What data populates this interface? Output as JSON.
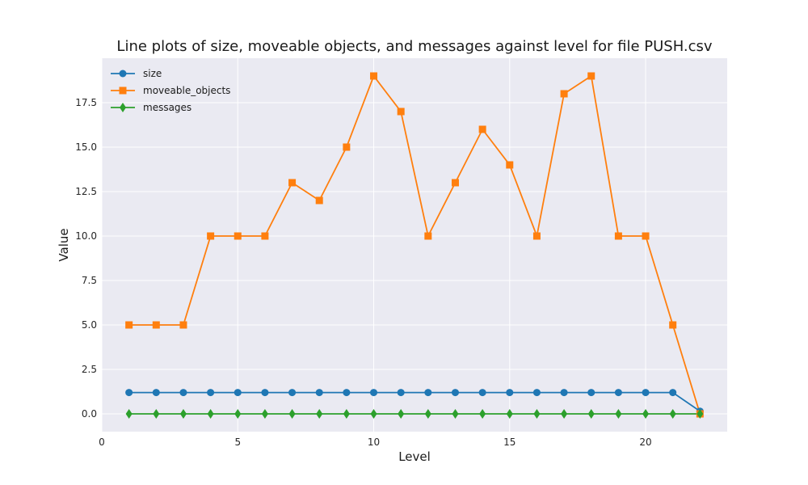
{
  "chart_data": {
    "type": "line",
    "title": "Line plots of size, moveable objects, and messages against level for file PUSH.csv",
    "xlabel": "Level",
    "ylabel": "Value",
    "xlim": [
      0,
      23
    ],
    "ylim": [
      -1,
      20
    ],
    "xticks": [
      0,
      5,
      10,
      15,
      20
    ],
    "yticks": [
      0.0,
      2.5,
      5.0,
      7.5,
      10.0,
      12.5,
      15.0,
      17.5
    ],
    "ytick_labels": [
      "0.0",
      "2.5",
      "5.0",
      "7.5",
      "10.0",
      "12.5",
      "15.0",
      "17.5"
    ],
    "grid": true,
    "legend_position": "top-left",
    "x": [
      1,
      2,
      3,
      4,
      5,
      6,
      7,
      8,
      9,
      10,
      11,
      12,
      13,
      14,
      15,
      16,
      17,
      18,
      19,
      20,
      21,
      22
    ],
    "series": [
      {
        "name": "size",
        "color": "#1f77b4",
        "marker": "circle",
        "values": [
          1.2,
          1.2,
          1.2,
          1.2,
          1.2,
          1.2,
          1.2,
          1.2,
          1.2,
          1.2,
          1.2,
          1.2,
          1.2,
          1.2,
          1.2,
          1.2,
          1.2,
          1.2,
          1.2,
          1.2,
          1.2,
          0.15
        ]
      },
      {
        "name": "moveable_objects",
        "color": "#ff7f0e",
        "marker": "square",
        "values": [
          5,
          5,
          5,
          10,
          10,
          10,
          13,
          12,
          15,
          19,
          17,
          10,
          13,
          16,
          14,
          10,
          18,
          19,
          10,
          10,
          5,
          0
        ]
      },
      {
        "name": "messages",
        "color": "#2ca02c",
        "marker": "diamond",
        "values": [
          0,
          0,
          0,
          0,
          0,
          0,
          0,
          0,
          0,
          0,
          0,
          0,
          0,
          0,
          0,
          0,
          0,
          0,
          0,
          0,
          0,
          0
        ]
      }
    ]
  }
}
